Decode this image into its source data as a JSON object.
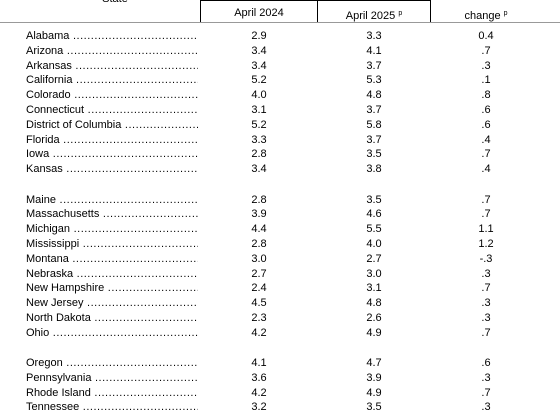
{
  "table": {
    "header": {
      "state": "State",
      "col1": "April 2024",
      "col2": "April 2025",
      "col2_note": "p",
      "col3": "change",
      "col3_note": "p"
    },
    "groups": [
      [
        [
          "Alabama",
          "2.9",
          "3.3",
          "0.4"
        ],
        [
          "Arizona",
          "3.4",
          "4.1",
          ".7"
        ],
        [
          "Arkansas",
          "3.4",
          "3.7",
          ".3"
        ],
        [
          "California",
          "5.2",
          "5.3",
          ".1"
        ],
        [
          "Colorado",
          "4.0",
          "4.8",
          ".8"
        ],
        [
          "Connecticut",
          "3.1",
          "3.7",
          ".6"
        ],
        [
          "District of Columbia",
          "5.2",
          "5.8",
          ".6"
        ],
        [
          "Florida",
          "3.3",
          "3.7",
          ".4"
        ],
        [
          "Iowa",
          "2.8",
          "3.5",
          ".7"
        ],
        [
          "Kansas",
          "3.4",
          "3.8",
          ".4"
        ]
      ],
      [
        [
          "Maine",
          "2.8",
          "3.5",
          ".7"
        ],
        [
          "Massachusetts",
          "3.9",
          "4.6",
          ".7"
        ],
        [
          "Michigan",
          "4.4",
          "5.5",
          "1.1"
        ],
        [
          "Mississippi",
          "2.8",
          "4.0",
          "1.2"
        ],
        [
          "Montana",
          "3.0",
          "2.7",
          "-.3"
        ],
        [
          "Nebraska",
          "2.7",
          "3.0",
          ".3"
        ],
        [
          "New Hampshire",
          "2.4",
          "3.1",
          ".7"
        ],
        [
          "New Jersey",
          "4.5",
          "4.8",
          ".3"
        ],
        [
          "North Dakota",
          "2.3",
          "2.6",
          ".3"
        ],
        [
          "Ohio",
          "4.2",
          "4.9",
          ".7"
        ]
      ],
      [
        [
          "Oregon",
          "4.1",
          "4.7",
          ".6"
        ],
        [
          "Pennsylvania",
          "3.6",
          "3.9",
          ".3"
        ],
        [
          "Rhode Island",
          "4.2",
          "4.9",
          ".7"
        ],
        [
          "Tennessee",
          "3.2",
          "3.5",
          ".3"
        ]
      ]
    ]
  }
}
